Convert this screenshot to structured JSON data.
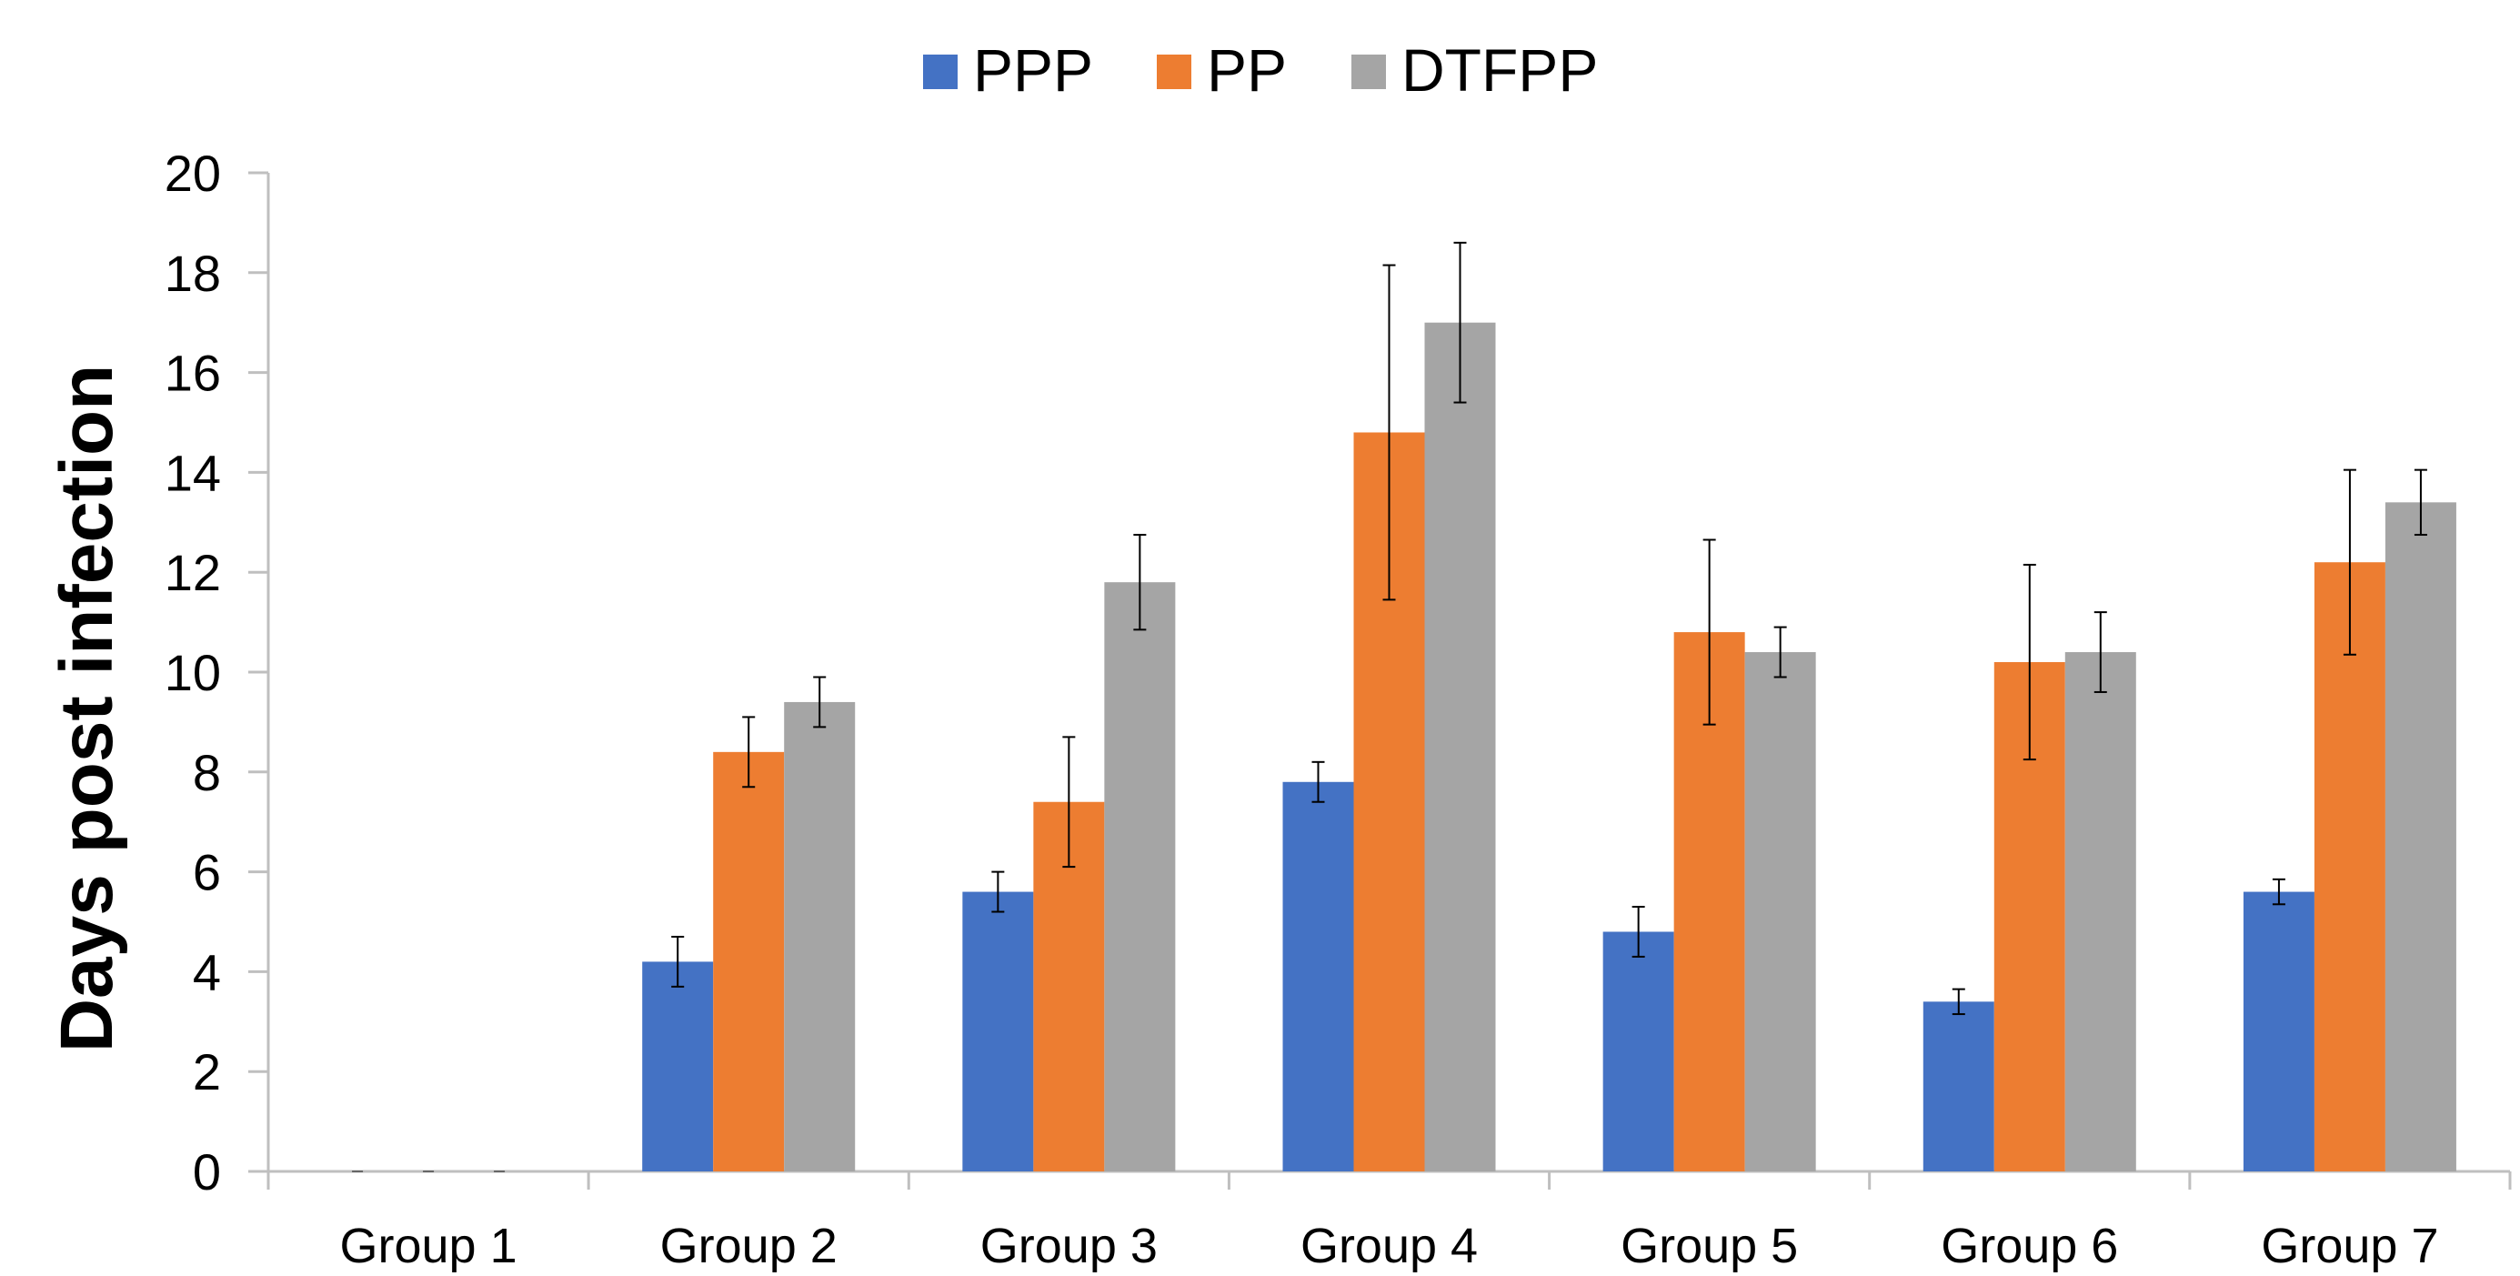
{
  "chart_data": {
    "type": "bar",
    "ylabel": "Days post infection",
    "xlabel": "",
    "ylim": [
      0,
      20
    ],
    "y_ticks": [
      0,
      2,
      4,
      6,
      8,
      10,
      12,
      14,
      16,
      18,
      20
    ],
    "grid": false,
    "legend_position": "top",
    "categories": [
      "Group 1",
      "Group 2",
      "Group 3",
      "Group 4",
      "Group 5",
      "Group 6",
      "Group 7"
    ],
    "series": [
      {
        "name": "PPP",
        "color": "#4472C4",
        "values": [
          0,
          4.2,
          5.6,
          7.8,
          4.8,
          3.4,
          5.6
        ],
        "errors": [
          0,
          0.5,
          0.4,
          0.4,
          0.5,
          0.25,
          0.25
        ]
      },
      {
        "name": "PP",
        "color": "#ED7D31",
        "values": [
          0,
          8.4,
          7.4,
          14.8,
          10.8,
          10.2,
          12.2
        ],
        "errors": [
          0,
          0.7,
          1.3,
          3.35,
          1.85,
          1.95,
          1.85
        ]
      },
      {
        "name": "DTFPP",
        "color": "#A5A5A5",
        "values": [
          0,
          9.4,
          11.8,
          17.0,
          10.4,
          10.4,
          13.4
        ],
        "errors": [
          0,
          0.5,
          0.95,
          1.6,
          0.5,
          0.8,
          0.65
        ]
      }
    ]
  }
}
